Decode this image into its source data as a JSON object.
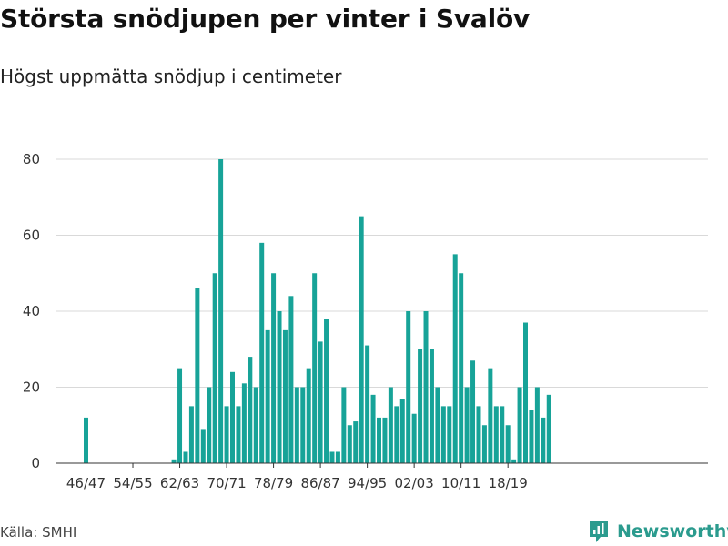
{
  "header": {
    "title": "Största snödjupen per vinter i Svalöv",
    "subtitle": "Högst uppmätta snödjup i centimeter"
  },
  "footer": {
    "source": "Källa: SMHI",
    "brand": "Newsworthy"
  },
  "colors": {
    "bar": "#17a398",
    "grid": "#d9d9d9",
    "axis": "#333333",
    "brand": "#2b9b8e"
  },
  "chart_data": {
    "type": "bar",
    "title": "Största snödjupen per vinter i Svalöv",
    "subtitle": "Högst uppmätta snödjup i centimeter",
    "xlabel": "",
    "ylabel": "",
    "ylim": [
      0,
      80
    ],
    "yticks": [
      0,
      20,
      40,
      60,
      80
    ],
    "grid": true,
    "xtick_labels": [
      "46/47",
      "54/55",
      "62/63",
      "70/71",
      "78/79",
      "86/87",
      "94/95",
      "02/03",
      "10/11",
      "18/19"
    ],
    "categories": [
      "46/47",
      "47/48",
      "48/49",
      "49/50",
      "50/51",
      "51/52",
      "52/53",
      "53/54",
      "54/55",
      "55/56",
      "56/57",
      "57/58",
      "58/59",
      "59/60",
      "60/61",
      "61/62",
      "62/63",
      "63/64",
      "64/65",
      "65/66",
      "66/67",
      "67/68",
      "68/69",
      "69/70",
      "70/71",
      "71/72",
      "72/73",
      "73/74",
      "74/75",
      "75/76",
      "76/77",
      "77/78",
      "78/79",
      "79/80",
      "80/81",
      "81/82",
      "82/83",
      "83/84",
      "84/85",
      "85/86",
      "86/87",
      "87/88",
      "88/89",
      "89/90",
      "90/91",
      "91/92",
      "92/93",
      "93/94",
      "94/95",
      "95/96",
      "96/97",
      "97/98",
      "98/99",
      "99/00",
      "00/01",
      "01/02",
      "02/03",
      "03/04",
      "04/05",
      "05/06",
      "06/07",
      "07/08",
      "08/09",
      "09/10",
      "10/11",
      "11/12",
      "12/13",
      "13/14",
      "14/15",
      "15/16",
      "16/17",
      "17/18",
      "18/19",
      "19/20",
      "20/21",
      "21/22",
      "22/23",
      "23/24",
      "24/25",
      "25/26",
      "26/27"
    ],
    "values": [
      12,
      0,
      0,
      0,
      0,
      0,
      0,
      0,
      0,
      0,
      0,
      0,
      0,
      0,
      0,
      1,
      25,
      3,
      15,
      46,
      9,
      20,
      50,
      80,
      15,
      24,
      15,
      21,
      28,
      20,
      58,
      35,
      50,
      40,
      35,
      44,
      20,
      20,
      25,
      50,
      32,
      38,
      3,
      3,
      20,
      10,
      11,
      65,
      31,
      18,
      12,
      12,
      20,
      15,
      17,
      40,
      13,
      30,
      40,
      30,
      20,
      15,
      15,
      55,
      50,
      20,
      27,
      15,
      10,
      25,
      15,
      15,
      10,
      1,
      20,
      37,
      14,
      20,
      12,
      18,
      0
    ]
  }
}
